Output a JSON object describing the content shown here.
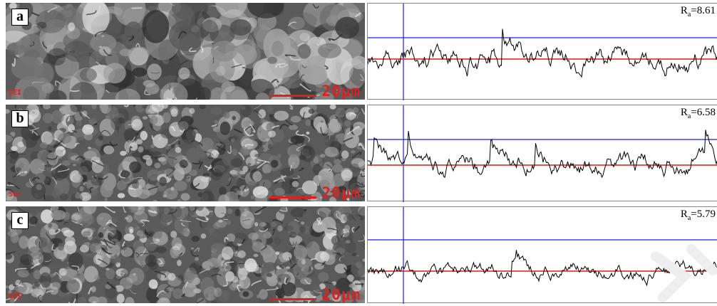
{
  "panels": [
    {
      "letter": "a",
      "ra_label": "R",
      "ra_sub": "a",
      "ra_value": "=8.61",
      "scale": "20μm",
      "sei": "SEI"
    },
    {
      "letter": "b",
      "ra_label": "R",
      "ra_sub": "a",
      "ra_value": "=6.58",
      "scale": "20μm",
      "sei": "SEI"
    },
    {
      "letter": "c",
      "ra_label": "R",
      "ra_sub": "a",
      "ra_value": "=5.79",
      "scale": "20μm",
      "sei": "SEI"
    }
  ],
  "colors": {
    "upper_line": "#1a1aff",
    "mean_line": "#e01818",
    "profile": "#000000",
    "scale": "#e02020"
  }
}
